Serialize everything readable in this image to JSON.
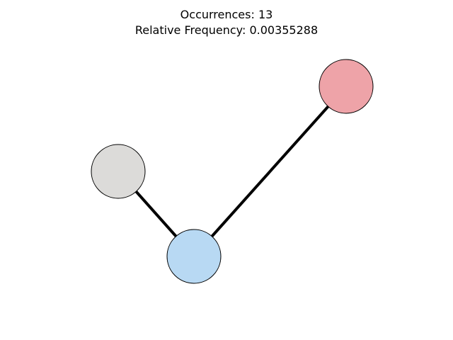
{
  "title": {
    "occurrences": "Occurrences: 13",
    "frequency": "Relative Frequency: 0.00355288"
  },
  "graph": {
    "nodes": [
      {
        "id": "gray",
        "color": "#dcdbd9"
      },
      {
        "id": "blue",
        "color": "#b8d9f3"
      },
      {
        "id": "red",
        "color": "#eea3a8"
      }
    ],
    "edges": [
      {
        "from": "gray",
        "to": "blue"
      },
      {
        "from": "blue",
        "to": "red"
      }
    ],
    "edge_color": "#000000",
    "node_outline_color": "#000000"
  }
}
